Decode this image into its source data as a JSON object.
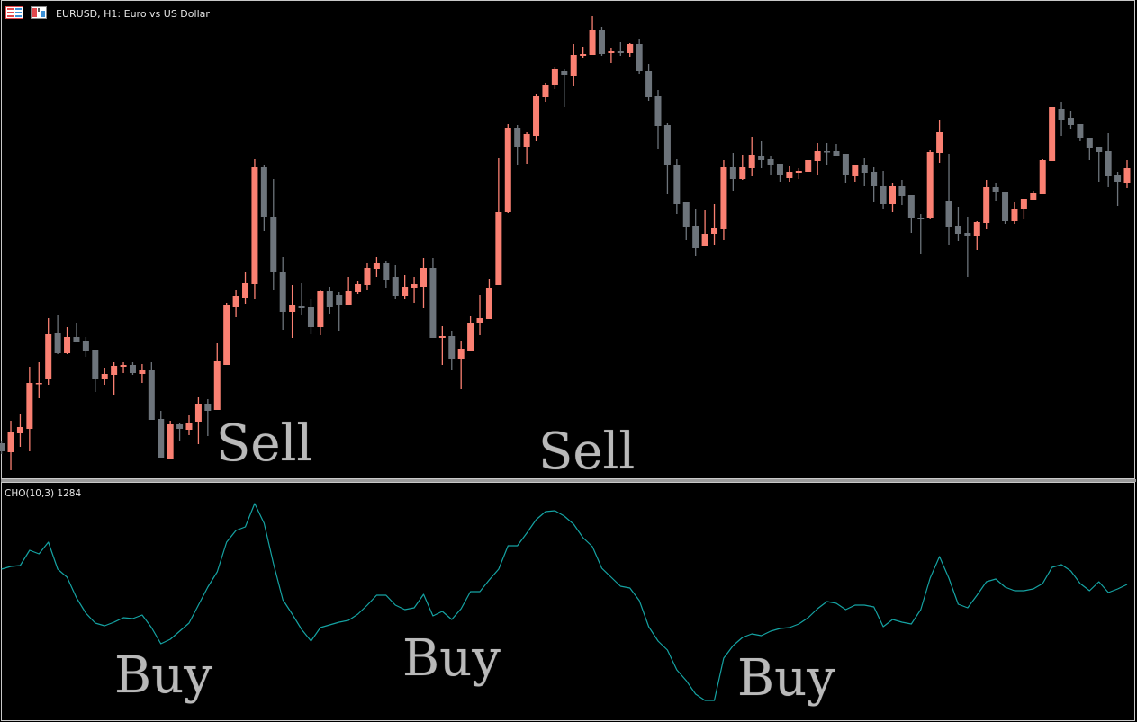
{
  "header": {
    "title": "EURUSD, H1:  Euro vs US Dollar",
    "icons": [
      "chart-window-grid-icon",
      "chart-type-icon"
    ]
  },
  "indicator": {
    "label": "CHO(10,3) 1284"
  },
  "annotations": {
    "sell_1": "Sell",
    "sell_2": "Sell",
    "buy_1": "Buy",
    "buy_2": "Buy",
    "buy_3": "Buy"
  },
  "colors": {
    "background": "#000000",
    "bull": "#fa8072",
    "bear": "#6d747b",
    "oscillator": "#15a3a3",
    "annotation": "#b9b9b9",
    "border": "#c8c8c8"
  },
  "chart_data": [
    {
      "type": "candlestick",
      "title": "EURUSD, H1:  Euro vs US Dollar",
      "note_units": "relative price (no price axis shown)",
      "ylim": [
        0,
        540
      ],
      "grid": false,
      "ohlc": [
        [
          47,
          50,
          35,
          38
        ],
        [
          37,
          72,
          17,
          60
        ],
        [
          58,
          79,
          43,
          65
        ],
        [
          63,
          132,
          38,
          114
        ],
        [
          113,
          137,
          97,
          114
        ],
        [
          118,
          186,
          112,
          169
        ],
        [
          170,
          190,
          146,
          147
        ],
        [
          147,
          176,
          146,
          165
        ],
        [
          165,
          181,
          160,
          160
        ],
        [
          161,
          165,
          143,
          150
        ],
        [
          151,
          151,
          104,
          118
        ],
        [
          118,
          131,
          112,
          124
        ],
        [
          123,
          137,
          101,
          133
        ],
        [
          132,
          137,
          125,
          134
        ],
        [
          134,
          137,
          123,
          125
        ],
        [
          124,
          135,
          114,
          129
        ],
        [
          129,
          137,
          73,
          73
        ],
        [
          74,
          83,
          31,
          31
        ],
        [
          30,
          72,
          30,
          68
        ],
        [
          68,
          70,
          49,
          63
        ],
        [
          62,
          78,
          56,
          70
        ],
        [
          71,
          98,
          46,
          91
        ],
        [
          91,
          96,
          55,
          83
        ],
        [
          84,
          159,
          84,
          138
        ],
        [
          134,
          203,
          134,
          201
        ],
        [
          199,
          218,
          187,
          211
        ],
        [
          209,
          237,
          202,
          225
        ],
        [
          224,
          363,
          208,
          354
        ],
        [
          354,
          357,
          283,
          299
        ],
        [
          299,
          341,
          218,
          238
        ],
        [
          238,
          254,
          173,
          193
        ],
        [
          193,
          223,
          164,
          201
        ],
        [
          200,
          225,
          190,
          198
        ],
        [
          199,
          208,
          169,
          176
        ],
        [
          176,
          218,
          167,
          216
        ],
        [
          216,
          221,
          191,
          199
        ],
        [
          212,
          215,
          172,
          201
        ],
        [
          201,
          232,
          201,
          216
        ],
        [
          215,
          227,
          213,
          224
        ],
        [
          223,
          247,
          217,
          242
        ],
        [
          241,
          254,
          232,
          248
        ],
        [
          248,
          250,
          220,
          229
        ],
        [
          232,
          245,
          208,
          211
        ],
        [
          211,
          234,
          208,
          221
        ],
        [
          220,
          232,
          203,
          224
        ],
        [
          221,
          253,
          197,
          242
        ],
        [
          242,
          253,
          164,
          164
        ],
        [
          164,
          177,
          134,
          166
        ],
        [
          166,
          172,
          129,
          141
        ],
        [
          141,
          161,
          107,
          152
        ],
        [
          150,
          189,
          150,
          181
        ],
        [
          181,
          212,
          167,
          186
        ],
        [
          185,
          230,
          185,
          220
        ],
        [
          223,
          364,
          223,
          304
        ],
        [
          304,
          402,
          303,
          398
        ],
        [
          398,
          401,
          357,
          377
        ],
        [
          377,
          393,
          358,
          391
        ],
        [
          389,
          436,
          383,
          433
        ],
        [
          432,
          448,
          427,
          445
        ],
        [
          445,
          465,
          441,
          463
        ],
        [
          461,
          463,
          421,
          457
        ],
        [
          456,
          491,
          444,
          479
        ],
        [
          478,
          488,
          476,
          480
        ],
        [
          479,
          522,
          479,
          507
        ],
        [
          507,
          510,
          478,
          480
        ],
        [
          481,
          487,
          470,
          483
        ],
        [
          483,
          493,
          478,
          481
        ],
        [
          481,
          492,
          477,
          491
        ],
        [
          491,
          497,
          458,
          461
        ],
        [
          461,
          469,
          428,
          432
        ],
        [
          433,
          440,
          374,
          400
        ],
        [
          401,
          403,
          324,
          356
        ],
        [
          357,
          363,
          302,
          313
        ],
        [
          315,
          315,
          273,
          288
        ],
        [
          289,
          308,
          255,
          264
        ],
        [
          266,
          306,
          266,
          280
        ],
        [
          280,
          313,
          267,
          286
        ],
        [
          285,
          362,
          273,
          354
        ],
        [
          354,
          370,
          328,
          341
        ],
        [
          341,
          368,
          340,
          354
        ],
        [
          353,
          388,
          344,
          368
        ],
        [
          366,
          383,
          353,
          362
        ],
        [
          363,
          366,
          345,
          357
        ],
        [
          358,
          358,
          338,
          345
        ],
        [
          342,
          355,
          338,
          349
        ],
        [
          348,
          353,
          341,
          350
        ],
        [
          349,
          362,
          349,
          362
        ],
        [
          361,
          381,
          345,
          372
        ],
        [
          372,
          381,
          356,
          371
        ],
        [
          372,
          380,
          366,
          367
        ],
        [
          369,
          369,
          336,
          345
        ],
        [
          344,
          357,
          338,
          357
        ],
        [
          357,
          364,
          333,
          348
        ],
        [
          349,
          354,
          315,
          333
        ],
        [
          333,
          350,
          308,
          313
        ],
        [
          313,
          337,
          304,
          333
        ],
        [
          333,
          340,
          312,
          322
        ],
        [
          323,
          323,
          281,
          298
        ],
        [
          298,
          302,
          258,
          296
        ],
        [
          297,
          373,
          296,
          371
        ],
        [
          370,
          407,
          359,
          393
        ],
        [
          316,
          369,
          268,
          288
        ],
        [
          289,
          310,
          272,
          280
        ],
        [
          281,
          299,
          232,
          278
        ],
        [
          278,
          294,
          262,
          293
        ],
        [
          292,
          340,
          285,
          332
        ],
        [
          332,
          337,
          317,
          326
        ],
        [
          327,
          327,
          291,
          294
        ],
        [
          294,
          315,
          291,
          308
        ],
        [
          307,
          319,
          296,
          319
        ],
        [
          318,
          328,
          318,
          325
        ],
        [
          324,
          363,
          324,
          362
        ],
        [
          361,
          421,
          361,
          421
        ],
        [
          419,
          427,
          389,
          407
        ],
        [
          409,
          417,
          397,
          401
        ],
        [
          402,
          402,
          383,
          386
        ],
        [
          387,
          387,
          362,
          375
        ],
        [
          376,
          376,
          338,
          371
        ],
        [
          372,
          392,
          332,
          344
        ],
        [
          345,
          349,
          311,
          338
        ],
        [
          337,
          362,
          331,
          353
        ]
      ]
    },
    {
      "type": "line",
      "title": "CHO(10,3) 1284",
      "note_units": "relative oscillator level (no value axis shown)",
      "ylim": [
        0,
        263
      ],
      "grid": false,
      "values": [
        167,
        170,
        171,
        188,
        184,
        197,
        167,
        158,
        135,
        118,
        107,
        104,
        108,
        113,
        112,
        116,
        102,
        84,
        89,
        98,
        107,
        127,
        147,
        164,
        197,
        210,
        214,
        240,
        218,
        173,
        133,
        117,
        100,
        87,
        102,
        105,
        108,
        110,
        117,
        127,
        138,
        138,
        127,
        122,
        124,
        139,
        115,
        120,
        111,
        123,
        142,
        142,
        155,
        167,
        193,
        193,
        207,
        222,
        231,
        232,
        226,
        217,
        202,
        192,
        168,
        158,
        148,
        146,
        132,
        103,
        87,
        77,
        55,
        43,
        28,
        21,
        21,
        68,
        82,
        91,
        95,
        93,
        98,
        101,
        102,
        106,
        113,
        123,
        131,
        129,
        122,
        127,
        127,
        125,
        103,
        111,
        108,
        106,
        122,
        157,
        181,
        157,
        128,
        124,
        138,
        153,
        156,
        147,
        143,
        143,
        145,
        151,
        169,
        172,
        165,
        151,
        143,
        153,
        141,
        145,
        150
      ]
    }
  ]
}
